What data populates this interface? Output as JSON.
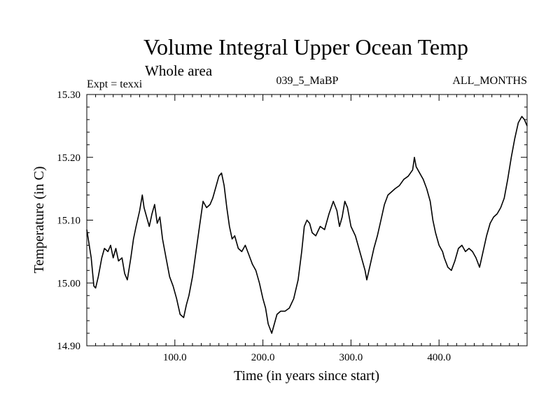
{
  "chart_data": {
    "type": "line",
    "title": "Volume Integral Upper Ocean Temp",
    "subtitle": "Whole area",
    "header_left": "Expt = texxi",
    "header_center": "039_5_MaBP",
    "header_right": "ALL_MONTHS",
    "xlabel": "Time (in years since start)",
    "ylabel": "Temperature (in C)",
    "xlim": [
      0,
      500
    ],
    "ylim": [
      14.9,
      15.3
    ],
    "x_ticks": [
      {
        "value": 100,
        "label": "100.0"
      },
      {
        "value": 200,
        "label": "200.0"
      },
      {
        "value": 300,
        "label": "300.0"
      },
      {
        "value": 400,
        "label": "400.0"
      }
    ],
    "y_ticks": [
      {
        "value": 14.9,
        "label": "14.90"
      },
      {
        "value": 15.0,
        "label": "15.00"
      },
      {
        "value": 15.1,
        "label": "15.10"
      },
      {
        "value": 15.2,
        "label": "15.20"
      },
      {
        "value": 15.3,
        "label": "15.30"
      }
    ],
    "series": [
      {
        "name": "Volume Integral Upper Ocean Temp",
        "x": [
          0,
          5,
          8,
          10,
          13,
          17,
          20,
          24,
          27,
          30,
          33,
          36,
          40,
          43,
          46,
          50,
          53,
          56,
          60,
          63,
          65,
          68,
          71,
          74,
          77,
          80,
          83,
          86,
          90,
          94,
          98,
          102,
          106,
          110,
          113,
          116,
          120,
          124,
          128,
          132,
          136,
          140,
          143,
          146,
          150,
          153,
          156,
          159,
          162,
          165,
          168,
          172,
          176,
          180,
          184,
          188,
          192,
          196,
          200,
          203,
          206,
          210,
          212,
          216,
          220,
          225,
          230,
          235,
          240,
          244,
          247,
          250,
          253,
          256,
          260,
          265,
          270,
          275,
          280,
          284,
          287,
          290,
          293,
          296,
          300,
          305,
          308,
          312,
          316,
          318,
          322,
          326,
          330,
          334,
          338,
          342,
          346,
          350,
          355,
          360,
          365,
          370,
          372,
          374,
          378,
          382,
          386,
          390,
          393,
          396,
          400,
          404,
          406,
          410,
          414,
          418,
          422,
          426,
          430,
          434,
          438,
          442,
          446,
          450,
          454,
          458,
          462,
          466,
          470,
          474,
          478,
          482,
          486,
          490,
          494,
          497,
          500
        ],
        "y": [
          15.085,
          15.04,
          14.995,
          14.992,
          15.01,
          15.04,
          15.055,
          15.05,
          15.06,
          15.04,
          15.055,
          15.035,
          15.04,
          15.015,
          15.005,
          15.04,
          15.07,
          15.09,
          15.115,
          15.14,
          15.12,
          15.105,
          15.09,
          15.11,
          15.125,
          15.095,
          15.105,
          15.07,
          15.04,
          15.01,
          14.995,
          14.975,
          14.95,
          14.945,
          14.965,
          14.98,
          15.01,
          15.05,
          15.09,
          15.13,
          15.12,
          15.125,
          15.135,
          15.15,
          15.17,
          15.175,
          15.155,
          15.12,
          15.09,
          15.07,
          15.075,
          15.055,
          15.05,
          15.06,
          15.045,
          15.03,
          15.02,
          15.0,
          14.975,
          14.96,
          14.935,
          14.92,
          14.93,
          14.95,
          14.955,
          14.955,
          14.96,
          14.975,
          15.005,
          15.05,
          15.09,
          15.1,
          15.095,
          15.08,
          15.075,
          15.09,
          15.085,
          15.11,
          15.13,
          15.115,
          15.09,
          15.105,
          15.13,
          15.12,
          15.09,
          15.075,
          15.06,
          15.04,
          15.02,
          15.005,
          15.03,
          15.055,
          15.075,
          15.1,
          15.125,
          15.14,
          15.145,
          15.15,
          15.155,
          15.165,
          15.17,
          15.18,
          15.2,
          15.185,
          15.175,
          15.165,
          15.15,
          15.13,
          15.1,
          15.08,
          15.06,
          15.05,
          15.04,
          15.025,
          15.02,
          15.035,
          15.055,
          15.06,
          15.05,
          15.055,
          15.05,
          15.04,
          15.025,
          15.05,
          15.075,
          15.095,
          15.105,
          15.11,
          15.12,
          15.135,
          15.165,
          15.2,
          15.23,
          15.255,
          15.265,
          15.26,
          15.25
        ]
      }
    ]
  }
}
